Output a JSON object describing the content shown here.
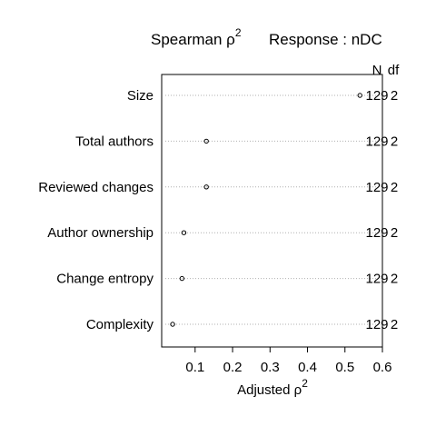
{
  "chart_data": {
    "type": "dotplot",
    "title_left": "Spearman ρ",
    "title_left_sup": "2",
    "title_right": "Response : nDC",
    "xlabel": "Adjusted ρ",
    "xlabel_sup": "2",
    "column_headers": [
      "N",
      "df"
    ],
    "xlim": [
      0.035,
      0.6
    ],
    "xticks": [
      0.1,
      0.2,
      0.3,
      0.4,
      0.5,
      0.6
    ],
    "xtick_labels": [
      "0.1",
      "0.2",
      "0.3",
      "0.4",
      "0.5",
      "0.6"
    ],
    "grid": "dotted horizontal",
    "rows": [
      {
        "label": "Size",
        "value": 0.54,
        "n": "129",
        "df": "2"
      },
      {
        "label": "Total authors",
        "value": 0.13,
        "n": "129",
        "df": "2"
      },
      {
        "label": "Reviewed changes",
        "value": 0.13,
        "n": "129",
        "df": "2"
      },
      {
        "label": "Author ownership",
        "value": 0.07,
        "n": "129",
        "df": "2"
      },
      {
        "label": "Change entropy",
        "value": 0.065,
        "n": "129",
        "df": "2"
      },
      {
        "label": "Complexity",
        "value": 0.04,
        "n": "129",
        "df": "2"
      }
    ]
  }
}
